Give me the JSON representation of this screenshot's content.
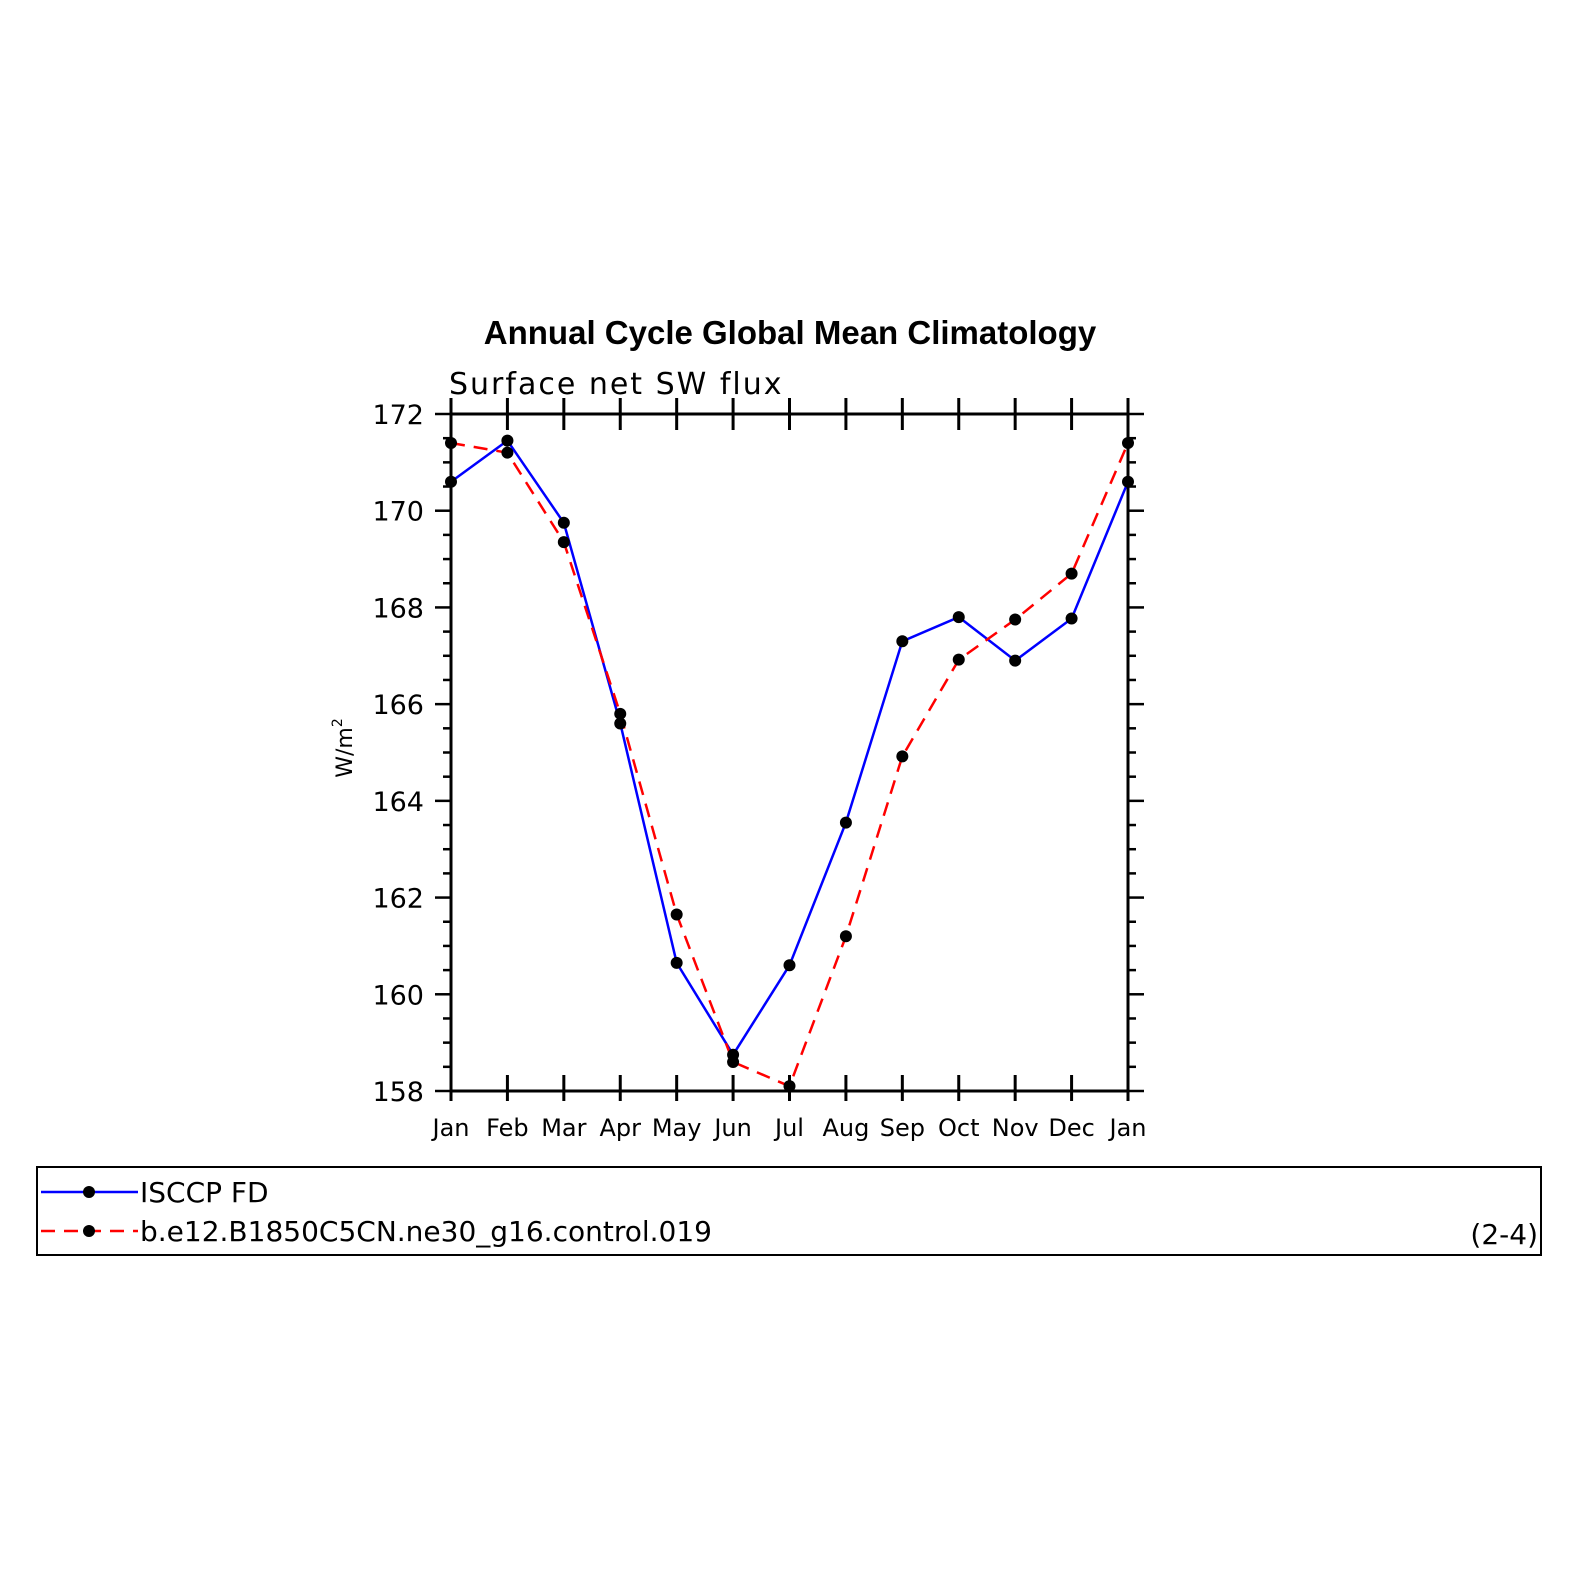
{
  "chart_data": {
    "type": "line",
    "title": "Annual Cycle Global Mean Climatology",
    "subtitle": "Surface net SW flux",
    "ylabel_base": "W/m",
    "ylabel_sup": "2",
    "categories": [
      "Jan",
      "Feb",
      "Mar",
      "Apr",
      "May",
      "Jun",
      "Jul",
      "Aug",
      "Sep",
      "Oct",
      "Nov",
      "Dec",
      "Jan"
    ],
    "ylim": [
      158,
      172
    ],
    "yticks": [
      158,
      160,
      162,
      164,
      166,
      168,
      170,
      172
    ],
    "series": [
      {
        "name": "ISCCP FD",
        "color": "#0000ff",
        "dash": "solid",
        "values": [
          170.6,
          171.45,
          169.75,
          165.6,
          160.65,
          158.75,
          160.6,
          163.55,
          167.3,
          167.8,
          166.9,
          167.77,
          170.6
        ]
      },
      {
        "name": "b.e12.B1850C5CN.ne30_g16.control.019",
        "color": "#ff0000",
        "dash": "dashed",
        "values": [
          171.4,
          171.2,
          169.35,
          165.8,
          161.65,
          158.6,
          158.1,
          161.2,
          164.92,
          166.92,
          167.75,
          168.7,
          171.4
        ]
      }
    ],
    "marker": "filled-circle",
    "marker_color": "#000000",
    "legend_position": "bottom",
    "panel_label": "(2-4)"
  }
}
